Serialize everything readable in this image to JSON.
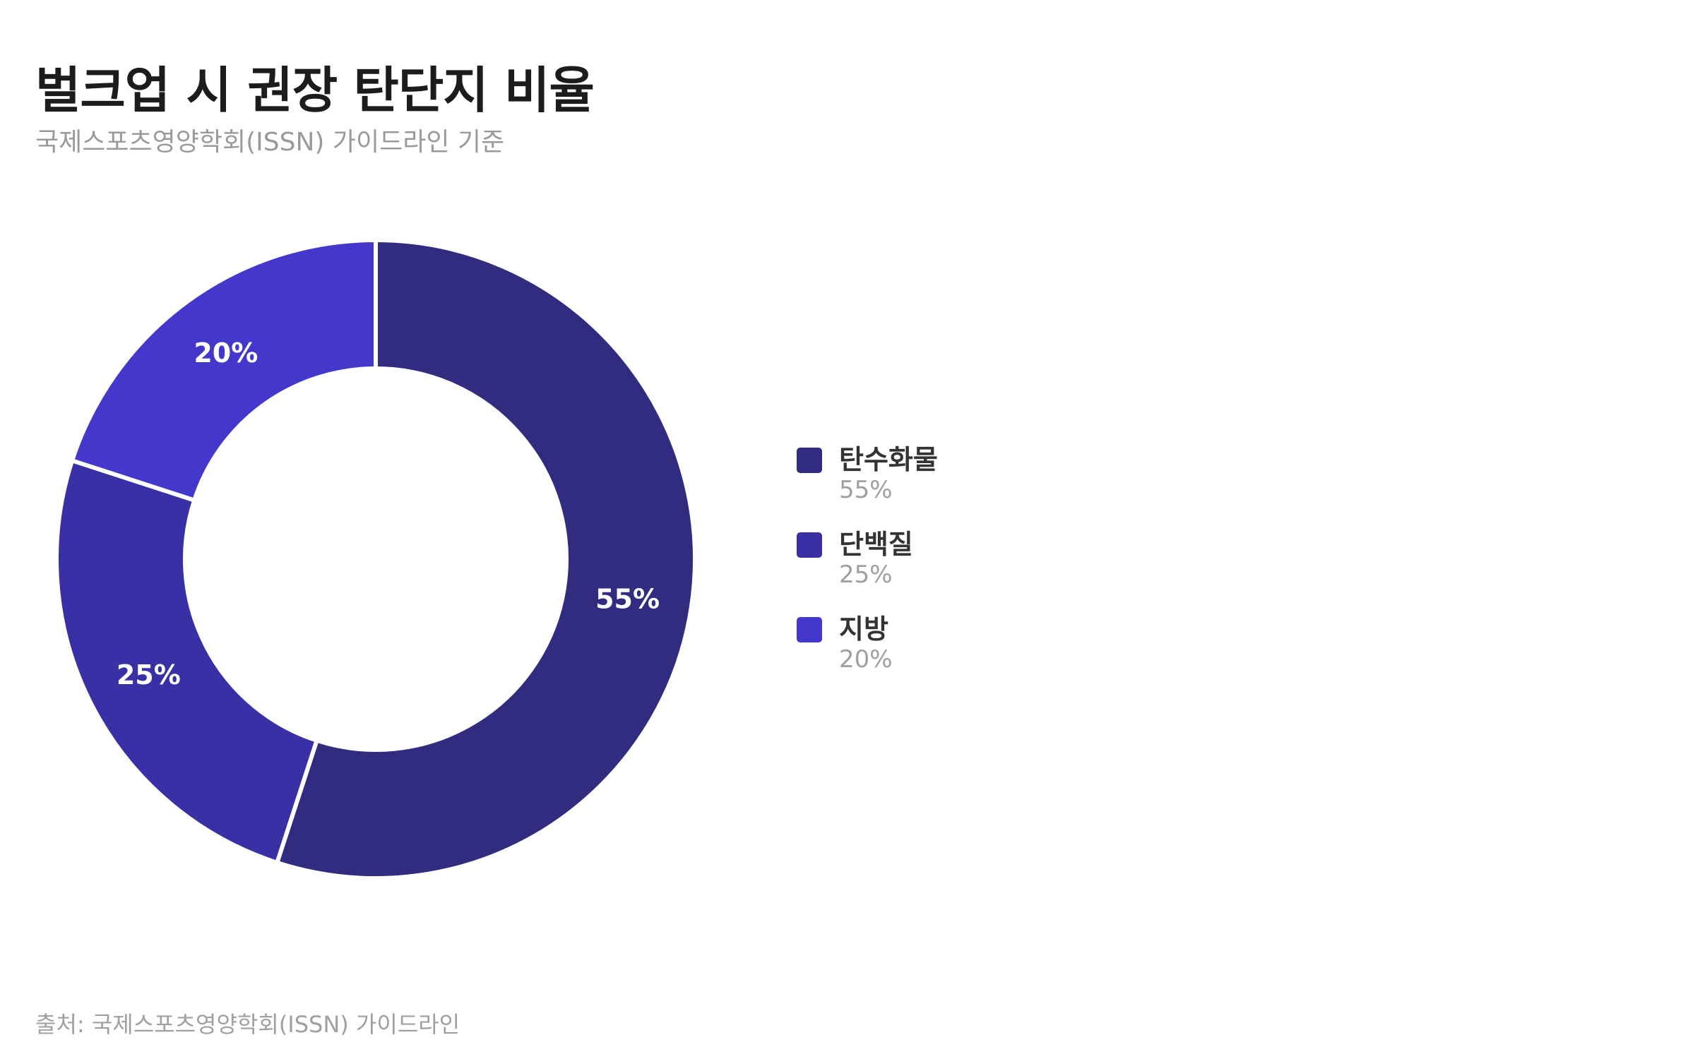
{
  "header": {
    "title": "벌크업 시 권장 탄단지 비율",
    "subtitle": "국제스포츠영양학회(ISSN) 가이드라인 기준"
  },
  "chart_data": {
    "type": "pie",
    "variant": "donut",
    "title": "벌크업 시 권장 탄단지 비율",
    "subtitle": "국제스포츠영양학회(ISSN) 가이드라인 기준",
    "categories": [
      "탄수화물",
      "단백질",
      "지방"
    ],
    "values": [
      55,
      25,
      20
    ],
    "unit": "%",
    "labels": [
      "55%",
      "25%",
      "20%"
    ],
    "colors": [
      "#312c80",
      "#3a30a6",
      "#4437cc"
    ],
    "legend_position": "right",
    "start_angle": "top",
    "direction": "clockwise"
  },
  "legend": {
    "items": [
      {
        "name": "탄수화물",
        "value": "55%",
        "color": "#312c80"
      },
      {
        "name": "단백질",
        "value": "25%",
        "color": "#3a30a6"
      },
      {
        "name": "지방",
        "value": "20%",
        "color": "#4437cc"
      }
    ]
  },
  "footer": {
    "source": "출처: 국제스포츠영양학회(ISSN) 가이드라인"
  }
}
